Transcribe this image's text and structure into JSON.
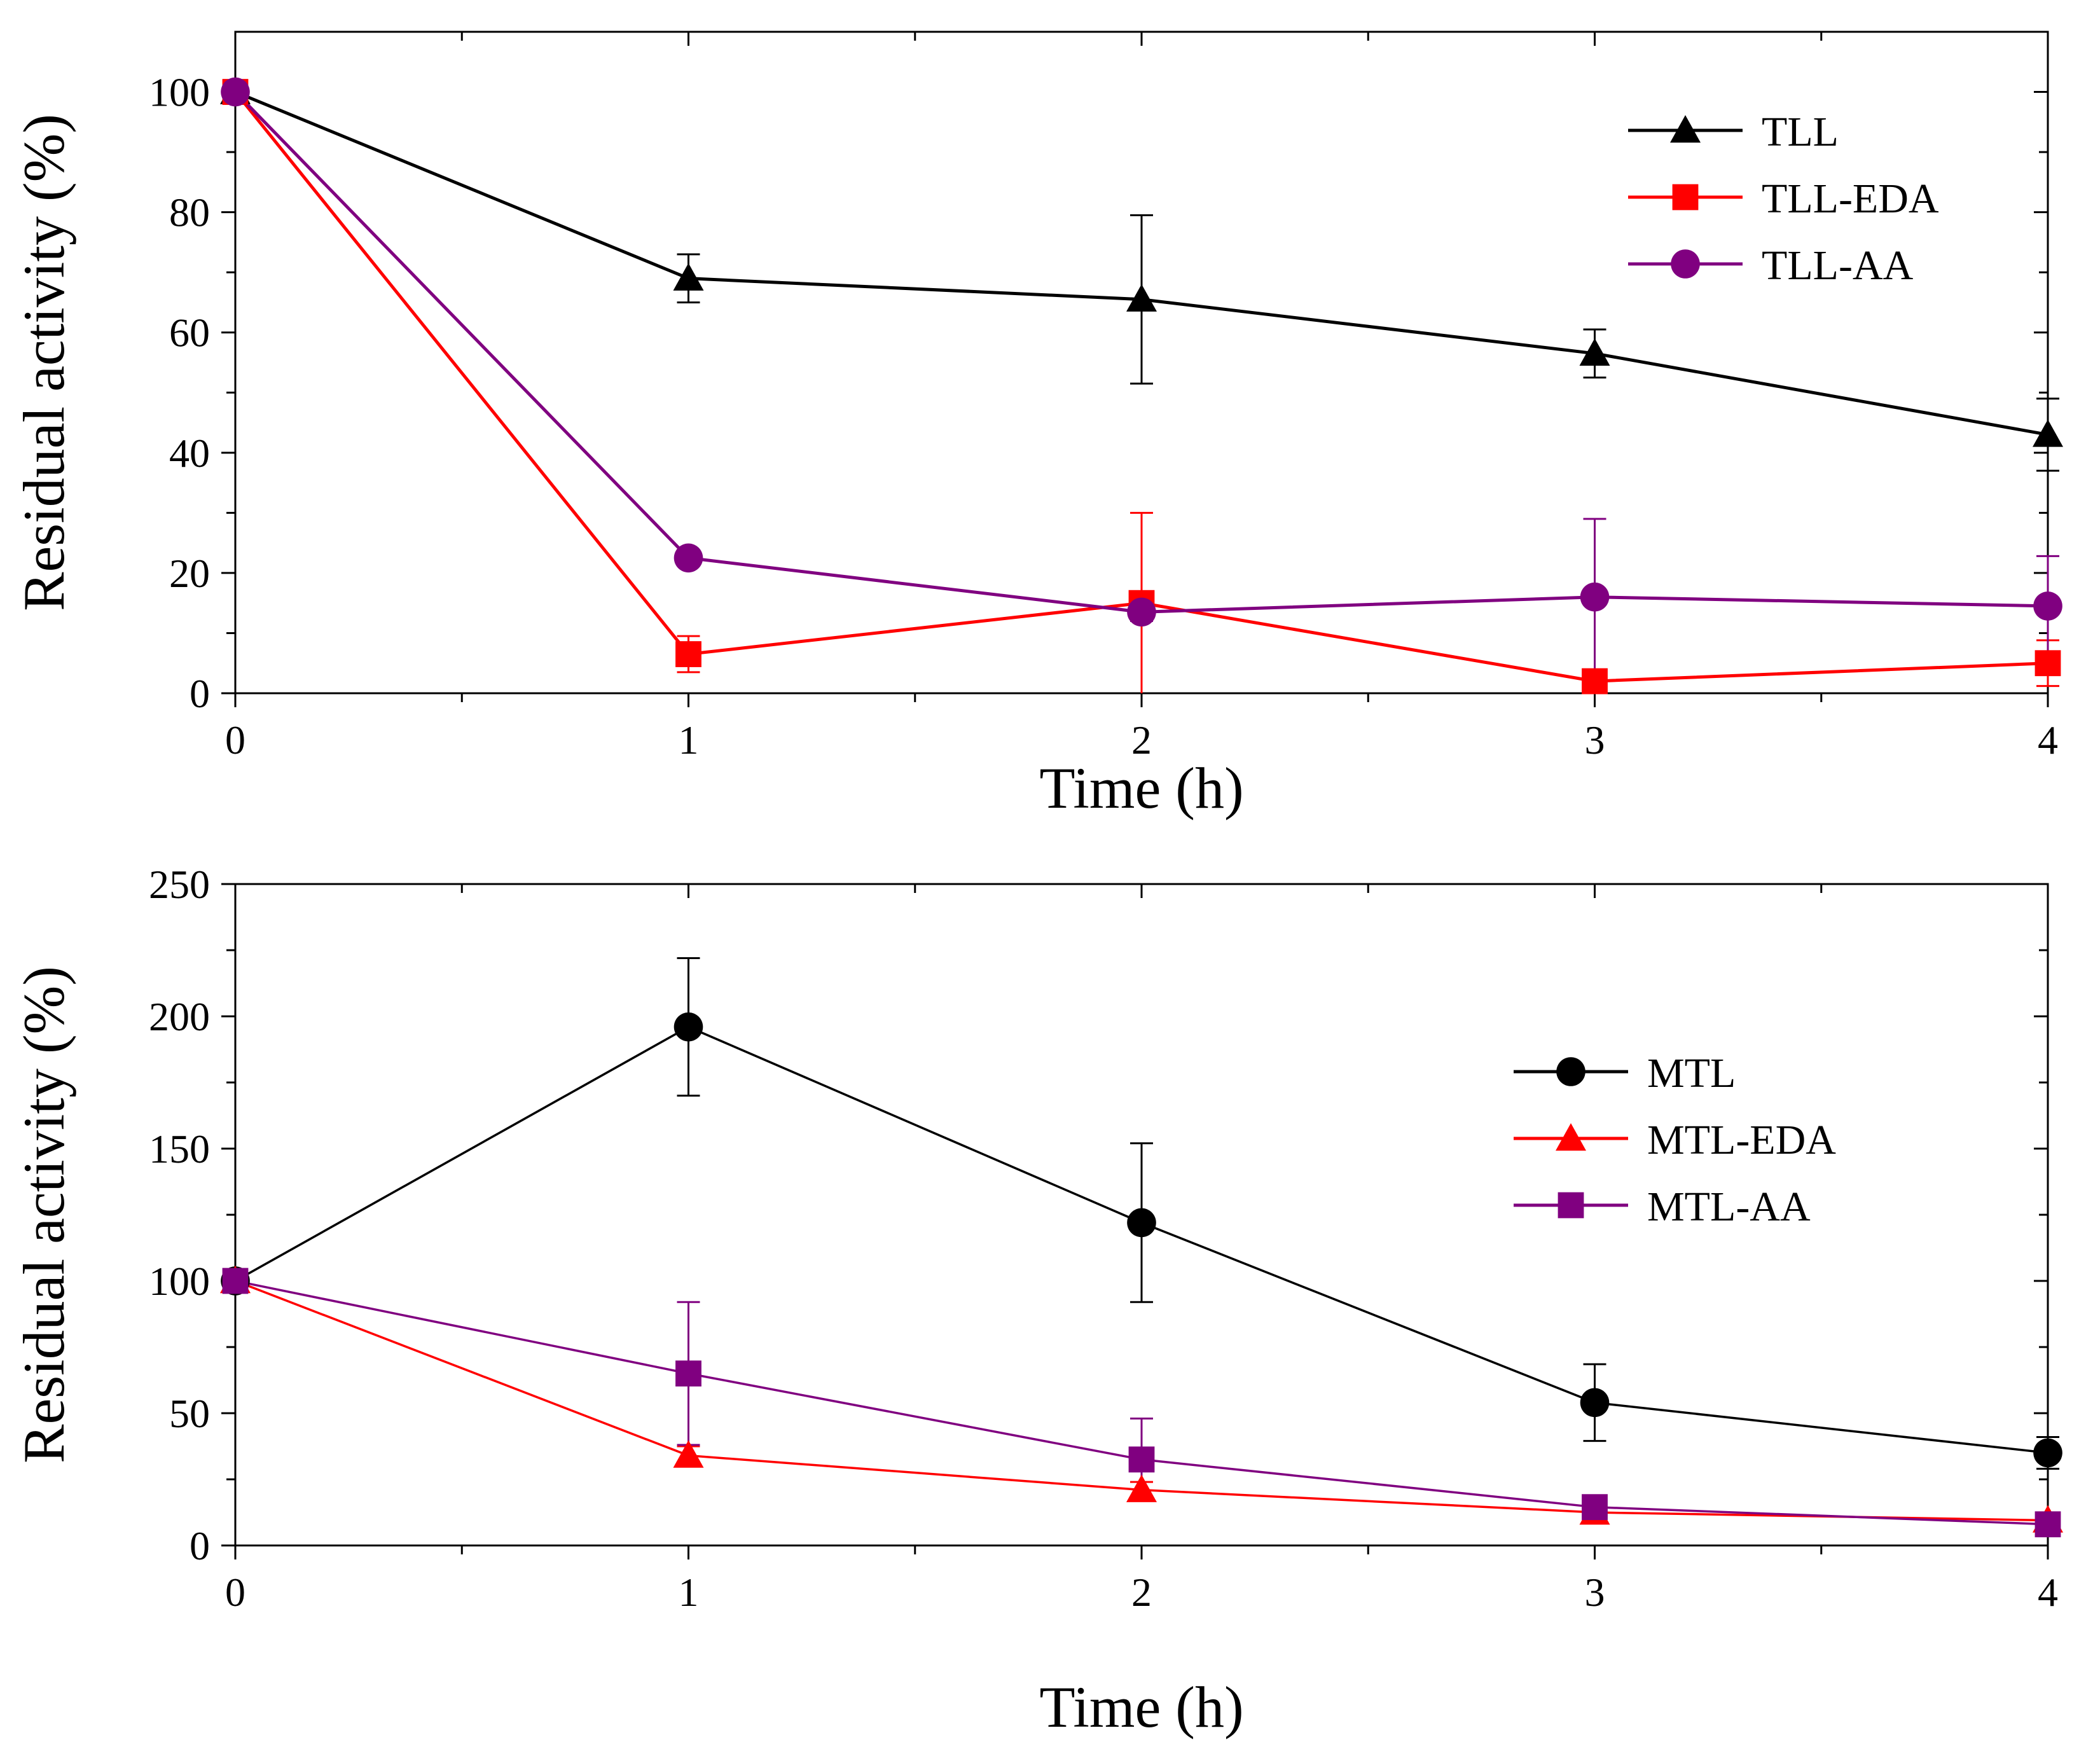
{
  "chart_data": [
    {
      "type": "line",
      "xlabel": "Time (h)",
      "ylabel": "Residual activity (%)",
      "xlim": [
        0,
        4
      ],
      "ylim": [
        0,
        110
      ],
      "xticks": [
        0,
        1,
        2,
        3,
        4
      ],
      "yticks": [
        0,
        20,
        40,
        60,
        80,
        100
      ],
      "xtick_labels": [
        "0",
        "1",
        "2",
        "3",
        "4"
      ],
      "ytick_labels": [
        "0",
        "20",
        "40",
        "60",
        "80",
        "100"
      ],
      "grid": false,
      "legend_position": "top-right",
      "x": [
        0,
        1,
        2,
        3,
        4
      ],
      "series": [
        {
          "name": "TLL",
          "color": "#000000",
          "marker": "triangle",
          "values": [
            100,
            69,
            65.5,
            56.5,
            43
          ],
          "errors": [
            0,
            4,
            14,
            4,
            6
          ]
        },
        {
          "name": "TLL-EDA",
          "color": "#ff0000",
          "marker": "square",
          "values": [
            100,
            6.5,
            15,
            2,
            5
          ],
          "errors": [
            0,
            3,
            15,
            1,
            3.8
          ]
        },
        {
          "name": "TLL-AA",
          "color": "#800080",
          "marker": "circle",
          "values": [
            100,
            22.5,
            13.5,
            16,
            14.5
          ],
          "errors": [
            0,
            0.5,
            1.5,
            13,
            8.3
          ]
        }
      ]
    },
    {
      "type": "line",
      "xlabel": "Time (h)",
      "ylabel": "Residual activity (%)",
      "xlim": [
        0,
        4
      ],
      "ylim": [
        0,
        250
      ],
      "xticks": [
        0,
        1,
        2,
        3,
        4
      ],
      "yticks": [
        0,
        50,
        100,
        150,
        200,
        250
      ],
      "xtick_labels": [
        "0",
        "1",
        "2",
        "3",
        "4"
      ],
      "ytick_labels": [
        "0",
        "50",
        "100",
        "150",
        "200",
        "250"
      ],
      "grid": false,
      "legend_position": "center-right",
      "x": [
        0,
        1,
        2,
        3,
        4
      ],
      "series": [
        {
          "name": "MTL",
          "color": "#000000",
          "marker": "circle",
          "values": [
            100,
            196,
            122,
            54,
            35
          ],
          "errors": [
            0,
            26,
            30,
            14.5,
            6
          ]
        },
        {
          "name": "MTL-EDA",
          "color": "#ff0000",
          "marker": "triangle",
          "values": [
            100,
            34,
            21,
            12.5,
            9.5
          ],
          "errors": [
            0,
            3.5,
            3,
            2.5,
            1.5
          ]
        },
        {
          "name": "MTL-AA",
          "color": "#800080",
          "marker": "square",
          "values": [
            100,
            65,
            32.5,
            14.5,
            8
          ],
          "errors": [
            0,
            27,
            15.5,
            4.5,
            1
          ]
        }
      ]
    }
  ]
}
